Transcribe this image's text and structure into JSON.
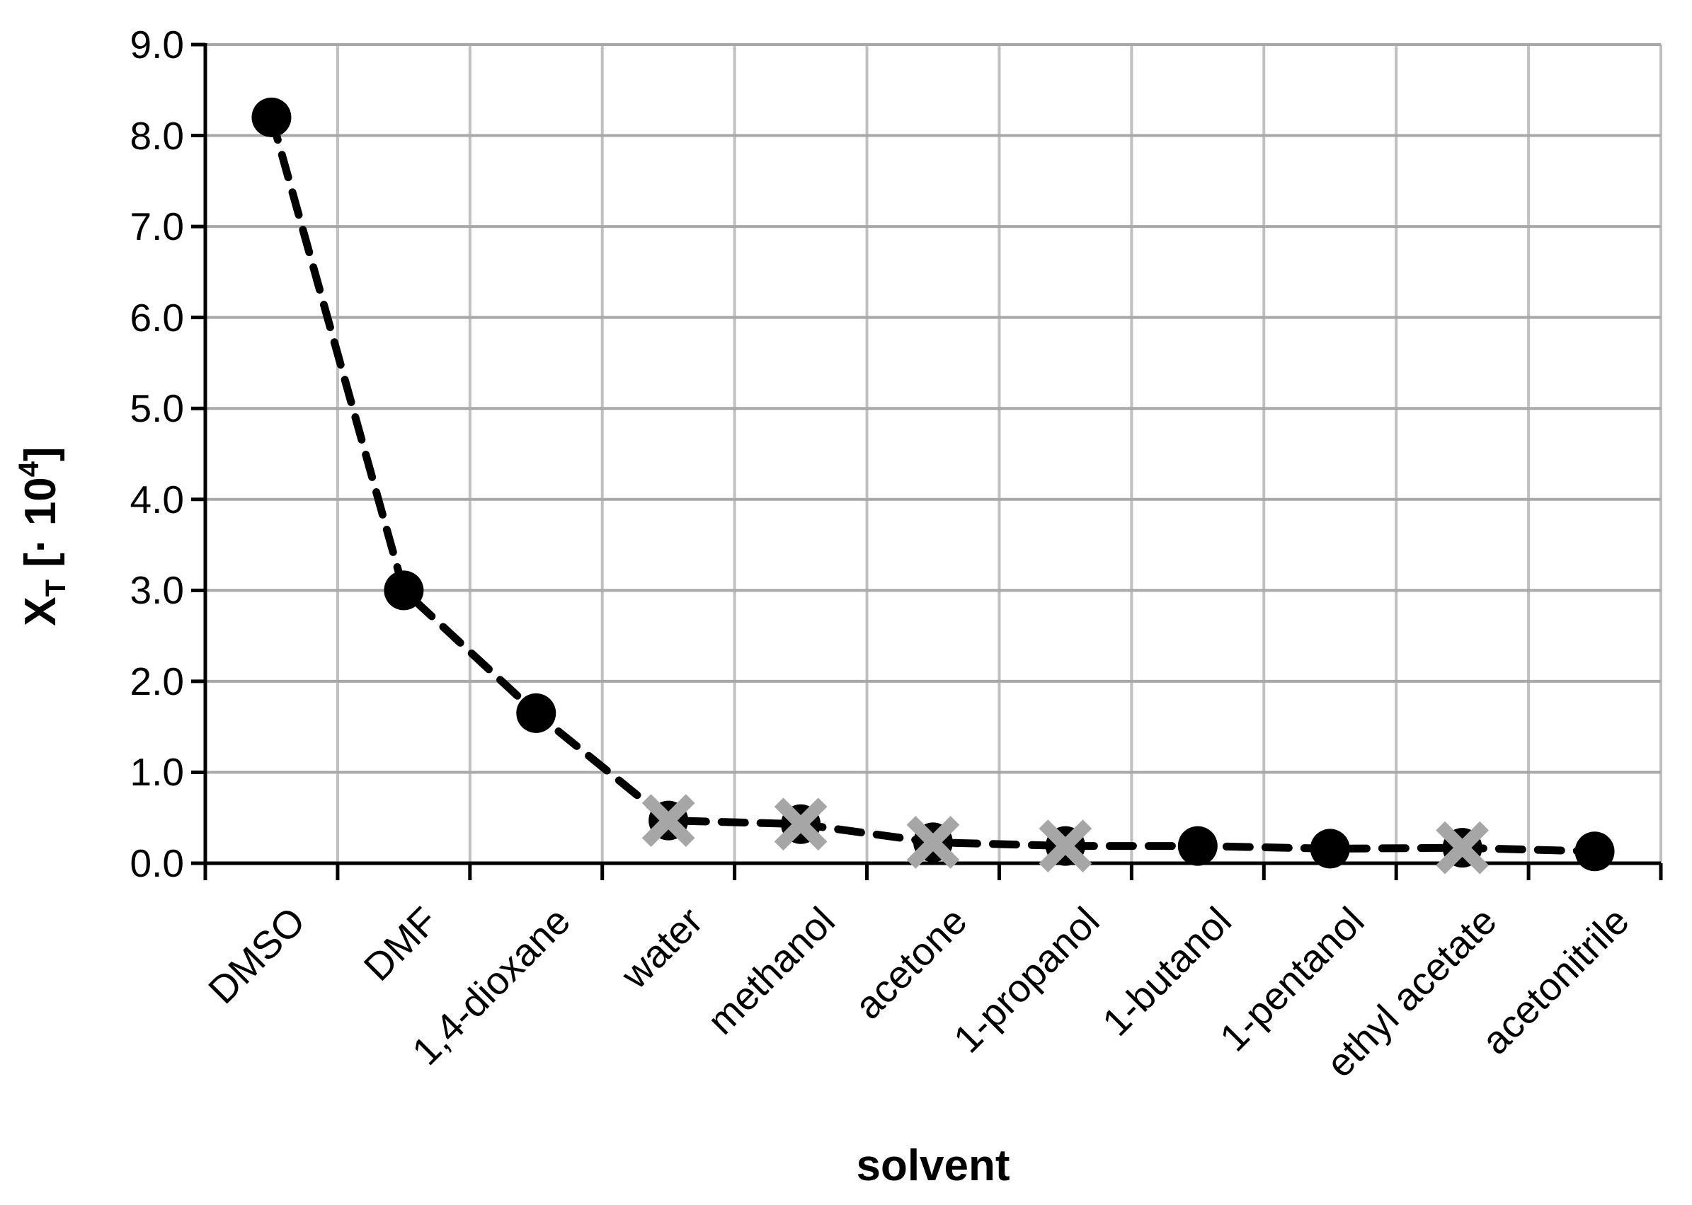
{
  "chart_data": {
    "type": "line",
    "title": "",
    "xlabel": "solvent",
    "ylabel": "XT [· 104]",
    "ylabel_parts": {
      "main": "X",
      "sub": "T",
      "mid": " [· 10",
      "sup": "4",
      "end": "]"
    },
    "categories": [
      "DMSO",
      "DMF",
      "1,4-dioxane",
      "water",
      "methanol",
      "acetone",
      "1-propanol",
      "1-butanol",
      "1-pentanol",
      "ethyl acetate",
      "acetonitrile"
    ],
    "series": [
      {
        "name": "XT",
        "values": [
          8.2,
          3.0,
          1.65,
          0.47,
          0.43,
          0.23,
          0.19,
          0.19,
          0.16,
          0.17,
          0.13
        ],
        "marker_types": [
          "circle",
          "circle",
          "circle",
          "x",
          "x",
          "x",
          "x",
          "circle",
          "circle",
          "x",
          "circle"
        ],
        "line_style": "dashed"
      }
    ],
    "y_tick_labels": [
      "0.0",
      "1.0",
      "2.0",
      "3.0",
      "4.0",
      "5.0",
      "6.0",
      "7.0",
      "8.0",
      "9.0"
    ],
    "ylim": [
      0,
      9
    ],
    "grid": true,
    "legend": "none",
    "colors": {
      "line": "#000000",
      "circle_marker": "#000000",
      "x_marker": "#A6A6A6",
      "gridline_horizontal": "#A8A8A8",
      "gridline_vertical": "#C0C0C0",
      "axis": "#000000",
      "text": "#000000",
      "background": "#FFFFFF"
    }
  }
}
